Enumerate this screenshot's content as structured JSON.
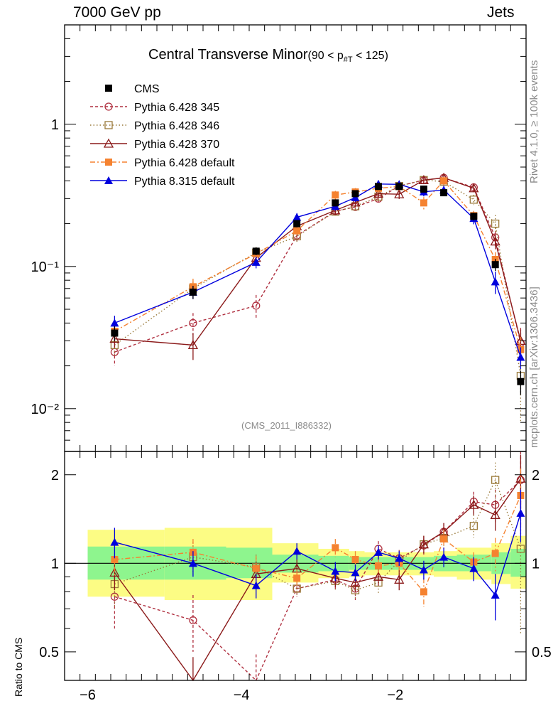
{
  "header": {
    "left": "7000 GeV pp",
    "right": "Jets"
  },
  "title": {
    "main": "Central Transverse Minor",
    "cut_prefix": "(90 < p",
    "cut_sub": "#T",
    "cut_suffix": " < 125)"
  },
  "side_labels": {
    "rivet": "Rivet 4.1.0, ≥ 100k events",
    "mcplots": "mcplots.cern.ch [arXiv:1306.3436]"
  },
  "reference": "(CMS_2011_I886332)",
  "ratio_ylabel": "Ratio to CMS",
  "colors": {
    "cms": "#000000",
    "p345": "#b03040",
    "p346": "#9a7a3a",
    "p370": "#8b1a1a",
    "p428def": "#f58230",
    "p8": "#0000dd",
    "band_green": "#8ef58e",
    "band_yellow": "#fcfc84"
  },
  "chart_data": [
    {
      "type": "line",
      "panel": "main",
      "yscale": "log",
      "ylim": [
        0.005,
        5
      ],
      "xlim": [
        -6.3,
        -0.3
      ],
      "yticks_major": [
        0.01,
        0.1,
        1
      ],
      "ytick_labels": [
        "10⁻²",
        "10⁻¹",
        "1"
      ],
      "x": [
        -5.65,
        -4.63,
        -3.81,
        -3.28,
        -2.78,
        -2.52,
        -2.22,
        -1.95,
        -1.63,
        -1.37,
        -0.98,
        -0.7,
        -0.37
      ],
      "series": [
        {
          "name": "CMS",
          "style": "cms",
          "values": [
            0.034,
            0.066,
            0.128,
            0.2,
            0.28,
            0.325,
            0.365,
            0.365,
            0.35,
            0.33,
            0.225,
            0.103,
            0.0155
          ],
          "errs": [
            0.004,
            0.007,
            0.008,
            0.012,
            0.015,
            0.016,
            0.018,
            0.018,
            0.018,
            0.018,
            0.014,
            0.01,
            0.003
          ]
        },
        {
          "name": "Pythia 6.428 345",
          "style": "p345",
          "values": [
            0.025,
            0.04,
            0.053,
            0.165,
            0.245,
            0.262,
            0.3,
            0.368,
            0.405,
            0.42,
            0.36,
            0.16,
            0.029
          ],
          "errs": [
            0.005,
            0.007,
            0.01,
            0.015,
            0.018,
            0.02,
            0.022,
            0.022,
            0.025,
            0.025,
            0.022,
            0.018,
            0.008
          ]
        },
        {
          "name": "Pythia 6.428 346",
          "style": "p346",
          "values": [
            0.028,
            0.07,
            0.125,
            0.163,
            0.243,
            0.265,
            0.31,
            0.368,
            0.405,
            0.395,
            0.295,
            0.2,
            0.017
          ],
          "errs": [
            0.005,
            0.008,
            0.012,
            0.014,
            0.018,
            0.02,
            0.022,
            0.024,
            0.026,
            0.028,
            0.024,
            0.03,
            0.009
          ]
        },
        {
          "name": "Pythia 6.428 370",
          "style": "p370",
          "values": [
            0.031,
            0.028,
            0.115,
            0.192,
            0.248,
            0.282,
            0.325,
            0.322,
            0.405,
            0.42,
            0.355,
            0.15,
            0.03
          ],
          "errs": [
            0.004,
            0.006,
            0.012,
            0.014,
            0.018,
            0.02,
            0.022,
            0.024,
            0.026,
            0.026,
            0.022,
            0.018,
            0.006
          ]
        },
        {
          "name": "Pythia 6.428 default",
          "style": "p428def",
          "values": [
            0.035,
            0.072,
            0.123,
            0.178,
            0.318,
            0.334,
            0.355,
            0.365,
            0.28,
            0.4,
            0.228,
            0.112,
            0.026
          ],
          "errs": [
            0.004,
            0.01,
            0.012,
            0.015,
            0.022,
            0.022,
            0.024,
            0.024,
            0.028,
            0.026,
            0.018,
            0.014,
            0.006
          ]
        },
        {
          "name": "Pythia 8.315 default",
          "style": "p8",
          "values": [
            0.04,
            0.066,
            0.107,
            0.222,
            0.265,
            0.305,
            0.38,
            0.378,
            0.335,
            0.345,
            0.218,
            0.078,
            0.023
          ],
          "errs": [
            0.005,
            0.007,
            0.01,
            0.015,
            0.018,
            0.02,
            0.022,
            0.022,
            0.024,
            0.025,
            0.02,
            0.014,
            0.004
          ]
        }
      ],
      "legend": {
        "placement": "top-left",
        "entries": [
          "CMS",
          "Pythia 6.428 345",
          "Pythia 6.428 346",
          "Pythia 6.428 370",
          "Pythia 6.428 default",
          "Pythia 8.315 default"
        ]
      }
    },
    {
      "type": "line",
      "panel": "ratio",
      "yscale": "log",
      "ylim": [
        0.4,
        2.4
      ],
      "xlim": [
        -6.3,
        -0.3
      ],
      "xticks": [
        -6,
        -4,
        -2
      ],
      "xtick_labels": [
        "−6",
        "−4",
        "−2"
      ],
      "yticks_major": [
        0.5,
        1,
        2
      ],
      "ytick_labels": [
        "0.5",
        "1",
        "2"
      ],
      "bands": {
        "edges": [
          -6.0,
          -5.0,
          -4.2,
          -3.6,
          -3.0,
          -2.6,
          -2.4,
          -2.0,
          -1.8,
          -1.5,
          -1.2,
          -0.75,
          -0.5,
          -0.3
        ],
        "green_lo": [
          0.88,
          0.88,
          0.89,
          0.93,
          0.94,
          0.95,
          0.95,
          0.95,
          0.95,
          0.94,
          0.94,
          0.92,
          0.9
        ],
        "green_hi": [
          1.14,
          1.14,
          1.13,
          1.07,
          1.06,
          1.05,
          1.05,
          1.05,
          1.05,
          1.06,
          1.07,
          1.09,
          1.12
        ],
        "yellow_lo": [
          0.77,
          0.75,
          0.75,
          0.86,
          0.89,
          0.9,
          0.91,
          0.91,
          0.91,
          0.9,
          0.88,
          0.85,
          0.82
        ],
        "yellow_hi": [
          1.3,
          1.32,
          1.32,
          1.17,
          1.12,
          1.1,
          1.09,
          1.09,
          1.09,
          1.1,
          1.13,
          1.17,
          1.24
        ]
      },
      "x": [
        -5.65,
        -4.63,
        -3.81,
        -3.28,
        -2.78,
        -2.52,
        -2.22,
        -1.95,
        -1.63,
        -1.37,
        -0.98,
        -0.7,
        -0.37
      ],
      "series": [
        {
          "name": "Pythia 6.428 345",
          "style": "p345",
          "values": [
            0.77,
            0.64,
            0.37,
            0.82,
            0.88,
            0.82,
            1.12,
            1.04,
            1.15,
            1.28,
            1.62,
            1.58,
            1.92
          ],
          "errs": [
            0.17,
            0.14,
            0.12,
            0.05,
            0.06,
            0.07,
            0.07,
            0.07,
            0.08,
            0.09,
            0.13,
            0.2,
            0.5
          ]
        },
        {
          "name": "Pythia 6.428 346",
          "style": "p346",
          "values": [
            0.85,
            1.05,
            0.97,
            0.82,
            0.87,
            0.81,
            0.86,
            1.02,
            1.16,
            1.22,
            1.34,
            1.92,
            1.12
          ],
          "errs": [
            0.15,
            0.13,
            0.1,
            0.05,
            0.06,
            0.06,
            0.07,
            0.07,
            0.08,
            0.09,
            0.12,
            0.28,
            0.55
          ]
        },
        {
          "name": "Pythia 6.428 370",
          "style": "p370",
          "values": [
            0.93,
            0.39,
            0.92,
            0.96,
            0.89,
            0.86,
            0.9,
            0.88,
            1.16,
            1.28,
            1.58,
            1.46,
            1.94
          ],
          "errs": [
            0.12,
            0.09,
            0.09,
            0.07,
            0.06,
            0.06,
            0.06,
            0.07,
            0.08,
            0.09,
            0.12,
            0.17,
            0.4
          ]
        },
        {
          "name": "Pythia 6.428 default",
          "style": "p428def",
          "values": [
            1.03,
            1.09,
            0.96,
            0.89,
            1.13,
            1.03,
            0.98,
            1.0,
            0.8,
            1.21,
            1.01,
            1.08,
            1.7
          ],
          "errs": [
            0.12,
            0.12,
            0.1,
            0.06,
            0.08,
            0.07,
            0.07,
            0.07,
            0.09,
            0.09,
            0.08,
            0.14,
            0.4
          ]
        },
        {
          "name": "Pythia 8.315 default",
          "style": "p8",
          "values": [
            1.18,
            1.0,
            0.84,
            1.1,
            0.94,
            0.93,
            1.09,
            1.04,
            0.95,
            1.05,
            0.96,
            0.78,
            1.48
          ],
          "errs": [
            0.14,
            0.1,
            0.08,
            0.07,
            0.07,
            0.06,
            0.06,
            0.06,
            0.07,
            0.08,
            0.09,
            0.14,
            0.3
          ]
        }
      ]
    }
  ]
}
